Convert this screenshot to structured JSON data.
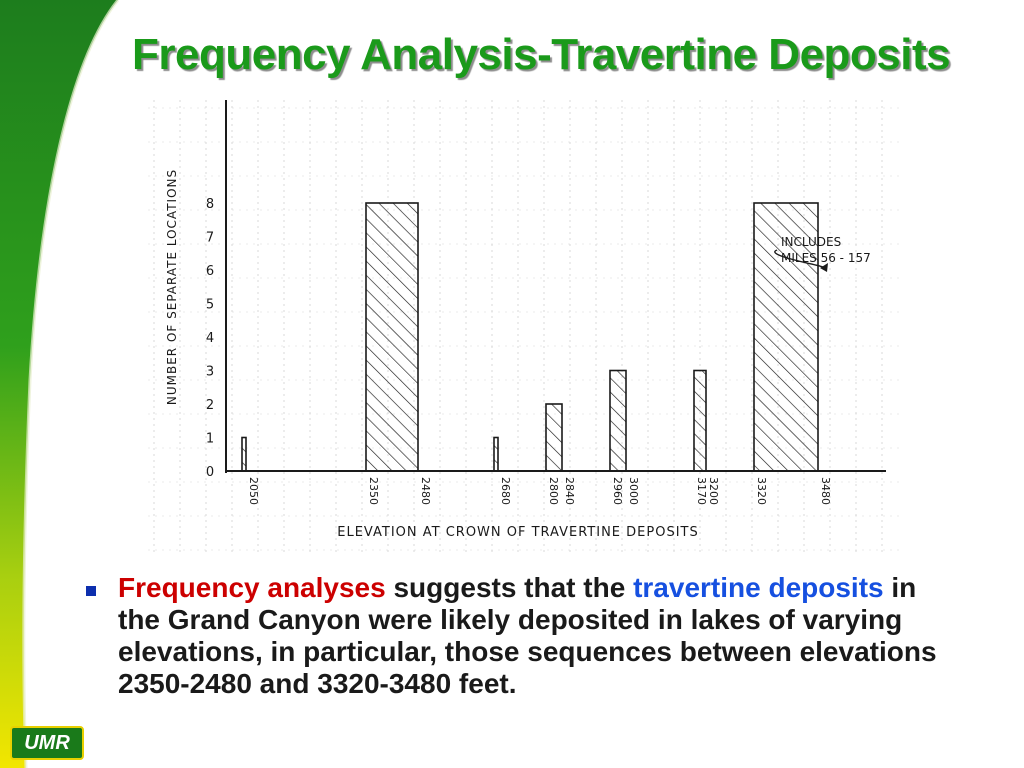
{
  "slide": {
    "title": "Frequency Analysis-Travertine Deposits",
    "badge": "UMR"
  },
  "bullet": {
    "part1": "Frequency analyses",
    "part2": " suggests that the ",
    "part3": "travertine deposits",
    "part4": " in the Grand Canyon were likely deposited in lakes of varying elevations, in particular, those sequences between elevations 2350-2480 and 3320-3480 feet."
  },
  "colors": {
    "title_green": "#1a9a1a",
    "emphasis_red": "#cc0000",
    "emphasis_blue": "#1650e0",
    "bullet_blue": "#0d2fae"
  },
  "chart_data": {
    "type": "bar",
    "xlabel": "ELEVATION AT CROWN OF TRAVERTINE DEPOSITS",
    "ylabel": "NUMBER OF SEPARATE LOCATIONS",
    "ylim": [
      0,
      8
    ],
    "yticks": [
      0,
      1,
      2,
      3,
      4,
      5,
      6,
      7,
      8
    ],
    "xlim": [
      2000,
      3600
    ],
    "grid": true,
    "bars": [
      {
        "x0": 2040,
        "x1": 2050,
        "value": 1
      },
      {
        "x0": 2350,
        "x1": 2480,
        "value": 8
      },
      {
        "x0": 2670,
        "x1": 2680,
        "value": 1
      },
      {
        "x0": 2800,
        "x1": 2840,
        "value": 2
      },
      {
        "x0": 2960,
        "x1": 3000,
        "value": 3
      },
      {
        "x0": 3170,
        "x1": 3200,
        "value": 3
      },
      {
        "x0": 3320,
        "x1": 3480,
        "value": 8
      }
    ],
    "xtick_labels": [
      {
        "value": 2050,
        "label": "2050"
      },
      {
        "value": 2350,
        "label": "2350"
      },
      {
        "value": 2480,
        "label": "2480"
      },
      {
        "value": 2680,
        "label": "2680"
      },
      {
        "value": 2800,
        "label": "2800"
      },
      {
        "value": 2840,
        "label": "2840"
      },
      {
        "value": 2960,
        "label": "2960"
      },
      {
        "value": 3000,
        "label": "3000"
      },
      {
        "value": 3170,
        "label": "3170"
      },
      {
        "value": 3200,
        "label": "3200"
      },
      {
        "value": 3320,
        "label": "3320"
      },
      {
        "value": 3480,
        "label": "3480"
      }
    ],
    "annotation": {
      "lines": [
        "INCLUDES",
        "MILES 56 - 157"
      ],
      "points_to": 3480
    }
  }
}
